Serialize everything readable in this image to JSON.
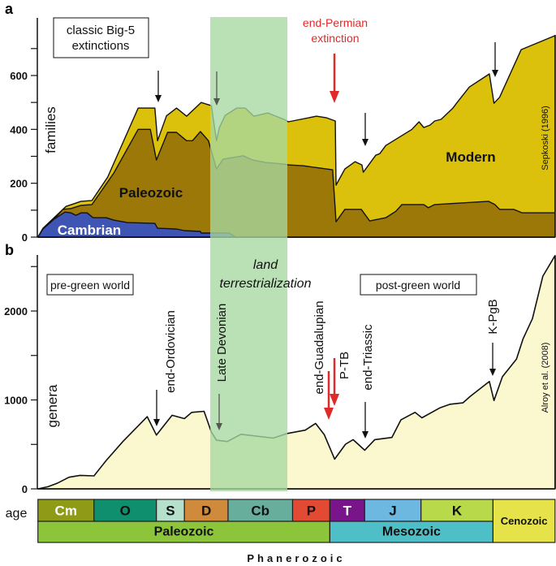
{
  "chart_data": [
    {
      "panel_label": "a",
      "type": "area",
      "stacked": true,
      "values_are_cumulative": true,
      "x_unit": "Ma",
      "ylabel": "families",
      "yticks": [
        0,
        200,
        400,
        600
      ],
      "ylim": [
        0,
        800
      ],
      "source": "Sepkoski (1996)",
      "series": [
        {
          "name": "Modern",
          "color": "#dcc10c",
          "points": [
            [
              541,
              0
            ],
            [
              536,
              33
            ],
            [
              513,
              114
            ],
            [
              498,
              133
            ],
            [
              487,
              136
            ],
            [
              476,
              223
            ],
            [
              456,
              479
            ],
            [
              445,
              479
            ],
            [
              443,
              358
            ],
            [
              435,
              450
            ],
            [
              426,
              479
            ],
            [
              416,
              449
            ],
            [
              396,
              500
            ],
            [
              382,
              488
            ],
            [
              375,
              358
            ],
            [
              371,
              406
            ],
            [
              363,
              452
            ],
            [
              351,
              479
            ],
            [
              343,
              479
            ],
            [
              335,
              449
            ],
            [
              322,
              461
            ],
            [
              307,
              437
            ],
            [
              303,
              428
            ],
            [
              269,
              449
            ],
            [
              256,
              443
            ],
            [
              244,
              431
            ],
            [
              243,
              193
            ],
            [
              230,
              253
            ],
            [
              215,
              280
            ],
            [
              205,
              268
            ],
            [
              203,
              241
            ],
            [
              190,
              304
            ],
            [
              186,
              310
            ],
            [
              180,
              340
            ],
            [
              154,
              400
            ],
            [
              147,
              428
            ],
            [
              142,
              407
            ],
            [
              135,
              416
            ],
            [
              130,
              431
            ],
            [
              123,
              437
            ],
            [
              110,
              479
            ],
            [
              106,
              497
            ],
            [
              92,
              557
            ],
            [
              70,
              606
            ],
            [
              65,
              497
            ],
            [
              59,
              519
            ],
            [
              36,
              696
            ],
            [
              0,
              748
            ]
          ]
        },
        {
          "name": "Paleozoic",
          "color": "#9c7808",
          "points": [
            [
              541,
              0
            ],
            [
              516,
              103
            ],
            [
              508,
              106
            ],
            [
              498,
              118
            ],
            [
              487,
              121
            ],
            [
              472,
              238
            ],
            [
              456,
              400
            ],
            [
              448,
              400
            ],
            [
              444,
              286
            ],
            [
              434,
              389
            ],
            [
              426,
              389
            ],
            [
              416,
              358
            ],
            [
              408,
              358
            ],
            [
              397,
              392
            ],
            [
              386,
              358
            ],
            [
              375,
              253
            ],
            [
              366,
              289
            ],
            [
              345,
              302
            ],
            [
              336,
              286
            ],
            [
              324,
              277
            ],
            [
              307,
              271
            ],
            [
              303,
              268
            ],
            [
              286,
              265
            ],
            [
              248,
              250
            ],
            [
              243,
              57
            ],
            [
              230,
              103
            ],
            [
              206,
              103
            ],
            [
              196,
              60
            ],
            [
              180,
              72
            ],
            [
              170,
              96
            ],
            [
              164,
              121
            ],
            [
              142,
              121
            ],
            [
              137,
              109
            ],
            [
              130,
              121
            ],
            [
              71,
              133
            ],
            [
              64,
              121
            ],
            [
              59,
              103
            ],
            [
              44,
              103
            ],
            [
              35,
              90
            ],
            [
              0,
              90
            ]
          ]
        },
        {
          "name": "Cambrian",
          "color": "#3f55b3",
          "points": [
            [
              541,
              0
            ],
            [
              536,
              30
            ],
            [
              525,
              66
            ],
            [
              514,
              93
            ],
            [
              508,
              90
            ],
            [
              503,
              81
            ],
            [
              498,
              90
            ],
            [
              492,
              90
            ],
            [
              486,
              72
            ],
            [
              477,
              72
            ],
            [
              472,
              63
            ],
            [
              463,
              54
            ],
            [
              445,
              51
            ],
            [
              443,
              33
            ],
            [
              426,
              30
            ],
            [
              419,
              24
            ],
            [
              397,
              21
            ],
            [
              396,
              15
            ],
            [
              382,
              15
            ],
            [
              358,
              15
            ],
            [
              352,
              0
            ]
          ]
        }
      ],
      "legend_box": "classic Big-5\nextinctions",
      "annotations": {
        "end_permian_line1": "end-Permian",
        "end_permian_line2": "extinction"
      }
    },
    {
      "panel_label": "b",
      "type": "area",
      "x_unit": "Ma",
      "ylabel": "genera",
      "yticks": [
        0,
        1000,
        2000
      ],
      "ylim": [
        0,
        2650
      ],
      "source": "Alroy et al. (2008)",
      "series": [
        {
          "color": "#fbf8cf",
          "points": [
            [
              541,
              0
            ],
            [
              531,
              24
            ],
            [
              522,
              61
            ],
            [
              510,
              131
            ],
            [
              499,
              152
            ],
            [
              485,
              146
            ],
            [
              477,
              319
            ],
            [
              466,
              532
            ],
            [
              450,
              812
            ],
            [
              444,
              605
            ],
            [
              430,
              827
            ],
            [
              419,
              790
            ],
            [
              409,
              860
            ],
            [
              392,
              872
            ],
            [
              382,
              638
            ],
            [
              375,
              547
            ],
            [
              360,
              532
            ],
            [
              347,
              614
            ],
            [
              317,
              571
            ],
            [
              304,
              623
            ],
            [
              283,
              660
            ],
            [
              270,
              736
            ],
            [
              259,
              608
            ],
            [
              245,
              334
            ],
            [
              229,
              502
            ],
            [
              218,
              553
            ],
            [
              201,
              435
            ],
            [
              191,
              553
            ],
            [
              174,
              578
            ],
            [
              165,
              775
            ],
            [
              151,
              860
            ],
            [
              144,
              799
            ],
            [
              124,
              912
            ],
            [
              113,
              952
            ],
            [
              99,
              967
            ],
            [
              91,
              1040
            ],
            [
              70,
              1207
            ],
            [
              65,
              994
            ],
            [
              56,
              1261
            ],
            [
              41,
              1459
            ],
            [
              34,
              1687
            ],
            [
              24,
              1915
            ],
            [
              13,
              2392
            ],
            [
              0,
              2623
            ]
          ]
        }
      ],
      "annotations": {
        "pre_green": "pre-green world",
        "post_green": "post-green world",
        "land_line1": "land",
        "land_line2": "terrestrialization",
        "end_ordovician": "end-Ordovician",
        "late_devonian": "Late Devonian",
        "end_guadalupian": "end-Guadalupian",
        "ptb": "P-TB",
        "end_triassic": "end-Triassic",
        "kpgb": "K-PgB"
      }
    }
  ],
  "timescale": {
    "label": "age",
    "periods": [
      {
        "abbr": "Cm",
        "start_ma": 541,
        "end_ma": 485,
        "color": "#8f9a17",
        "text": "#ffffff"
      },
      {
        "abbr": "O",
        "start_ma": 485,
        "end_ma": 444,
        "color": "#0f8f6d",
        "text": "#111111"
      },
      {
        "abbr": "S",
        "start_ma": 444,
        "end_ma": 419,
        "color": "#b5e0cc",
        "text": "#111111"
      },
      {
        "abbr": "D",
        "start_ma": 419,
        "end_ma": 359,
        "color": "#cf8a3c",
        "text": "#111111"
      },
      {
        "abbr": "Cb",
        "start_ma": 359,
        "end_ma": 299,
        "color": "#67ae9c",
        "text": "#111111"
      },
      {
        "abbr": "P",
        "start_ma": 299,
        "end_ma": 252,
        "color": "#e34a33",
        "text": "#111111"
      },
      {
        "abbr": "T",
        "start_ma": 252,
        "end_ma": 201,
        "color": "#7a148a",
        "text": "#ffffff"
      },
      {
        "abbr": "J",
        "start_ma": 201,
        "end_ma": 145,
        "color": "#6cb8e0",
        "text": "#111111"
      },
      {
        "abbr": "K",
        "start_ma": 145,
        "end_ma": 66,
        "color": "#b7d94a",
        "text": "#111111"
      }
    ],
    "eras": [
      {
        "name": "Paleozoic",
        "start_ma": 541,
        "end_ma": 252,
        "color": "#8cc43a"
      },
      {
        "name": "Mesozoic",
        "start_ma": 252,
        "end_ma": 66,
        "color": "#4fbfc7"
      },
      {
        "name": "Cenozoic",
        "start_ma": 66,
        "end_ma": 0,
        "color": "#e6e24a"
      }
    ],
    "eon": "Phanerozoic"
  },
  "highlight_band": {
    "color": "#a6d9a0",
    "start_ma": 382,
    "end_ma": 304
  }
}
